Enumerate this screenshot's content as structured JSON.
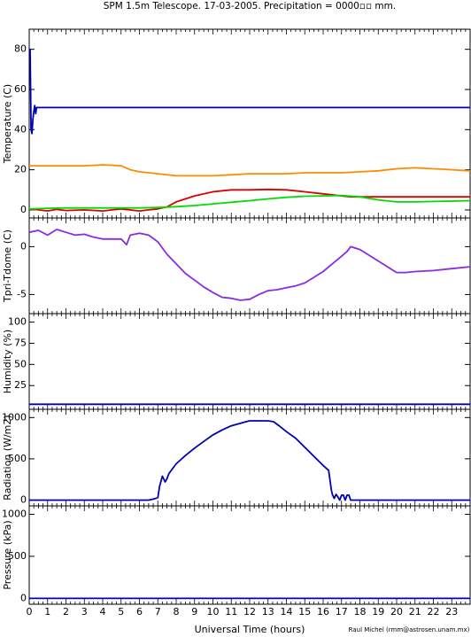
{
  "page": {
    "title": "SPM 1.5m Telescope. 17-03-2005. Precipitation = 0000▫▫ mm.",
    "credit": "Raul Michel (rmm@astrosen.unam.mx)"
  },
  "chart_data": {
    "type": "line",
    "xlabel": "Universal Time (hours)",
    "xlim": [
      0,
      24
    ],
    "xticks": [
      "0",
      "1",
      "2",
      "3",
      "4",
      "5",
      "6",
      "7",
      "8",
      "9",
      "10",
      "11",
      "12",
      "13",
      "14",
      "15",
      "16",
      "17",
      "18",
      "19",
      "20",
      "21",
      "22",
      "23"
    ],
    "grid": false,
    "panels": [
      {
        "id": "temperature",
        "ylabel": "Temperature (C)",
        "ylim": [
          -4,
          90
        ],
        "yticks": [
          {
            "v": 0,
            "label": "0"
          },
          {
            "v": 20,
            "label": "20"
          },
          {
            "v": 40,
            "label": "40"
          },
          {
            "v": 60,
            "label": "60"
          },
          {
            "v": 80,
            "label": "80"
          }
        ],
        "series": [
          {
            "color": "#0000b4",
            "x": [
              0,
              0.05,
              0.1,
              0.15,
              0.2,
              0.25,
              0.3,
              0.35,
              0.4,
              0.5,
              0.6,
              0.8,
              24
            ],
            "y": [
              80,
              80,
              40,
              38,
              45,
              49,
              52,
              48,
              51,
              51,
              51,
              51,
              51
            ]
          },
          {
            "color": "#ff8c00",
            "x": [
              0,
              1,
              2,
              3,
              4,
              5,
              5.5,
              6,
              7,
              8,
              9,
              10,
              11,
              12,
              13,
              14,
              15,
              16,
              17,
              18,
              19,
              20,
              21,
              22,
              23,
              24
            ],
            "y": [
              22,
              22,
              22,
              22,
              22.5,
              22,
              20,
              19,
              18,
              17,
              17,
              17,
              17.5,
              18,
              18,
              18,
              18.5,
              18.5,
              18.5,
              19,
              19.5,
              20.5,
              21,
              20.5,
              20,
              19.5
            ]
          },
          {
            "color": "#dc0000",
            "x": [
              0,
              0.5,
              1,
              1.5,
              2,
              3,
              4,
              5,
              6,
              6.5,
              7,
              7.5,
              8,
              9,
              10,
              11,
              12,
              13,
              14,
              15,
              16,
              17,
              17.5,
              18,
              20,
              22,
              24
            ],
            "y": [
              0.5,
              0,
              -0.5,
              0.3,
              -0.3,
              0,
              -0.5,
              0.5,
              -0.5,
              0,
              0.5,
              1.5,
              4,
              7,
              9,
              10,
              10,
              10.2,
              10,
              9,
              8,
              7,
              6.5,
              6.5,
              6.5,
              6.5,
              6.5
            ]
          },
          {
            "color": "#00dc00",
            "x": [
              0,
              1,
              2,
              3,
              4,
              5,
              6,
              7,
              8,
              9,
              10,
              11,
              12,
              13,
              14,
              15,
              16,
              17,
              18,
              19,
              20,
              21,
              22,
              23,
              24
            ],
            "y": [
              0.5,
              0.8,
              1,
              1,
              1,
              1,
              1,
              1.2,
              1.6,
              2.2,
              3,
              3.8,
              4.6,
              5.5,
              6.3,
              6.8,
              7,
              7.2,
              6.5,
              5,
              4,
              4,
              4.2,
              4.4,
              4.6
            ]
          }
        ]
      },
      {
        "id": "tpri-tdome",
        "ylabel": "Tpri-Tdome (C)",
        "ylim": [
          -7,
          3
        ],
        "yticks": [
          {
            "v": -5,
            "label": "-5"
          },
          {
            "v": 0,
            "label": "0"
          }
        ],
        "series": [
          {
            "color": "#8a2be2",
            "x": [
              0,
              0.5,
              1,
              1.5,
              2,
              2.5,
              3,
              3.5,
              4,
              4.5,
              5,
              5.3,
              5.5,
              6,
              6.5,
              7,
              7.5,
              8,
              8.5,
              9,
              9.5,
              10,
              10.5,
              11,
              11.5,
              12,
              12.5,
              13,
              13.5,
              14,
              14.5,
              15,
              15.5,
              16,
              16.5,
              17,
              17.3,
              17.5,
              18,
              18.5,
              19,
              19.5,
              20,
              20.5,
              21,
              22,
              23,
              24
            ],
            "y": [
              1.5,
              1.7,
              1.2,
              1.8,
              1.5,
              1.2,
              1.3,
              1,
              0.8,
              0.8,
              0.8,
              0.2,
              1.2,
              1.4,
              1.2,
              0.5,
              -0.8,
              -1.8,
              -2.8,
              -3.5,
              -4.2,
              -4.8,
              -5.3,
              -5.4,
              -5.6,
              -5.5,
              -5,
              -4.6,
              -4.5,
              -4.3,
              -4.1,
              -3.8,
              -3.2,
              -2.6,
              -1.8,
              -1,
              -0.5,
              0,
              -0.3,
              -0.9,
              -1.5,
              -2.1,
              -2.7,
              -2.7,
              -2.6,
              -2.5,
              -2.3,
              -2.1
            ]
          }
        ]
      },
      {
        "id": "humidity",
        "ylabel": "Humidity (%)",
        "ylim": [
          -3,
          110
        ],
        "yticks": [
          {
            "v": 25,
            "label": "25"
          },
          {
            "v": 50,
            "label": "50"
          },
          {
            "v": 75,
            "label": "75"
          },
          {
            "v": 100,
            "label": "100"
          }
        ],
        "series": [
          {
            "color": "#0000b4",
            "x": [
              0,
              24
            ],
            "y": [
              3,
              3
            ]
          }
        ]
      },
      {
        "id": "radiation",
        "ylabel": "Radiation (W/m2)",
        "ylim": [
          -70,
          1100
        ],
        "yticks": [
          {
            "v": 0,
            "label": "0"
          },
          {
            "v": 500,
            "label": "500"
          },
          {
            "v": 1000,
            "label": "1000"
          }
        ],
        "series": [
          {
            "color": "#0000b4",
            "x": [
              0,
              6.5,
              6.8,
              7,
              7.1,
              7.25,
              7.4,
              7.5,
              7.6,
              7.8,
              8,
              8.5,
              9,
              9.5,
              10,
              10.5,
              11,
              11.5,
              11.8,
              12,
              12.5,
              13,
              13.3,
              13.6,
              14,
              14.5,
              15,
              15.5,
              16,
              16.3,
              16.45,
              16.5,
              16.6,
              16.7,
              16.8,
              16.9,
              17,
              17.1,
              17.2,
              17.3,
              17.4,
              17.5,
              17.6,
              18,
              24
            ],
            "y": [
              0,
              0,
              15,
              30,
              170,
              290,
              220,
              260,
              320,
              380,
              440,
              540,
              630,
              710,
              790,
              850,
              900,
              930,
              950,
              960,
              960,
              960,
              950,
              900,
              830,
              750,
              640,
              530,
              420,
              360,
              120,
              70,
              20,
              70,
              40,
              0,
              60,
              60,
              0,
              60,
              60,
              0,
              0,
              0,
              0
            ]
          }
        ]
      },
      {
        "id": "pressure",
        "ylabel": "Pressure (kPa)",
        "ylim": [
          -70,
          1100
        ],
        "yticks": [
          {
            "v": 0,
            "label": "0"
          },
          {
            "v": 500,
            "label": "500"
          },
          {
            "v": 1000,
            "label": "1000"
          }
        ],
        "series": [
          {
            "color": "#0000b4",
            "x": [
              0,
              24
            ],
            "y": [
              0,
              0
            ]
          }
        ]
      }
    ]
  }
}
